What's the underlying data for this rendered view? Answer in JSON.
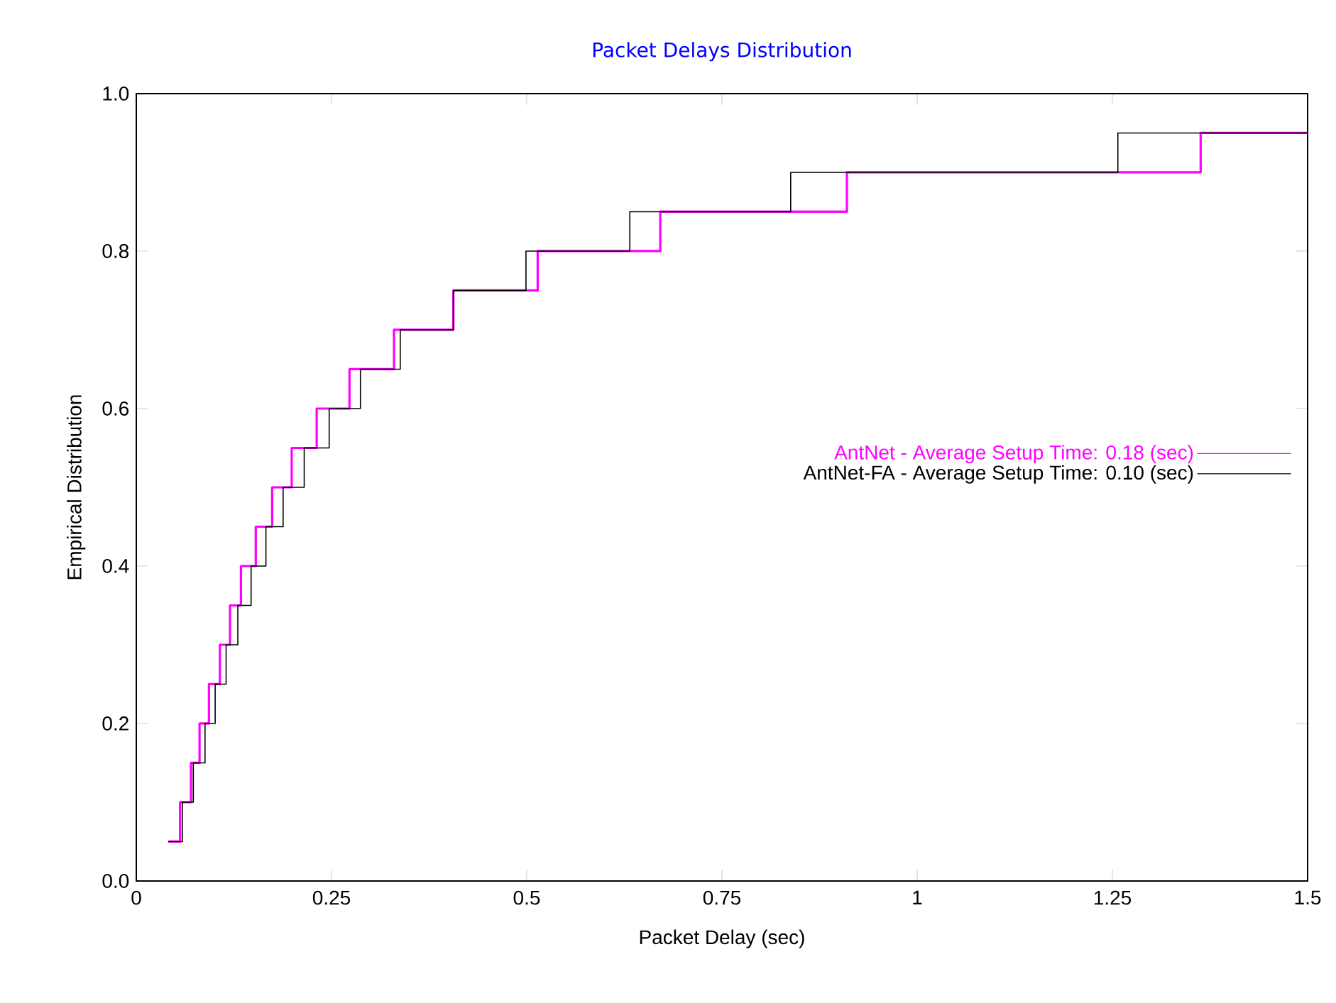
{
  "chart_data": {
    "type": "step",
    "title": "Packet Delays Distribution",
    "xlabel": "Packet Delay (sec)",
    "ylabel": "Empirical Distribution",
    "xlim": [
      0,
      1.5
    ],
    "ylim": [
      0,
      1.0
    ],
    "xticks": [
      0,
      0.25,
      0.5,
      0.75,
      1,
      1.25,
      1.5
    ],
    "yticks": [
      {
        "value": 0,
        "label": "0.0"
      },
      {
        "value": 0.2,
        "label": "0.2"
      },
      {
        "value": 0.4,
        "label": "0.4"
      },
      {
        "value": 0.6,
        "label": "0.6"
      },
      {
        "value": 0.8,
        "label": "0.8"
      },
      {
        "value": 1.0,
        "label": "1.0"
      }
    ],
    "grid": false,
    "legend": "right",
    "marker": "none",
    "line_style": "solid",
    "series": [
      {
        "name": "AntNet - Average Setup Time: 0.18 (sec)",
        "color": "#ff00ff",
        "x": [
          0.041,
          0.056,
          0.07,
          0.081,
          0.093,
          0.107,
          0.12,
          0.134,
          0.153,
          0.174,
          0.199,
          0.231,
          0.273,
          0.33,
          0.406,
          0.514,
          0.671,
          0.91,
          1.363,
          1.5
        ],
        "values": [
          0.05,
          0.1,
          0.15,
          0.2,
          0.25,
          0.3,
          0.35,
          0.4,
          0.45,
          0.5,
          0.55,
          0.6,
          0.65,
          0.7,
          0.75,
          0.8,
          0.85,
          0.9,
          0.95,
          0.95
        ]
      },
      {
        "name": "AntNet-FA - Average Setup Time: 0.10 (sec)",
        "color": "#000000",
        "x": [
          0.041,
          0.059,
          0.073,
          0.088,
          0.101,
          0.115,
          0.13,
          0.147,
          0.166,
          0.188,
          0.215,
          0.247,
          0.287,
          0.338,
          0.406,
          0.499,
          0.632,
          0.838,
          1.257,
          1.5
        ],
        "values": [
          0.05,
          0.1,
          0.15,
          0.2,
          0.25,
          0.3,
          0.35,
          0.4,
          0.45,
          0.5,
          0.55,
          0.6,
          0.65,
          0.7,
          0.75,
          0.8,
          0.85,
          0.9,
          0.95,
          0.95
        ]
      }
    ]
  }
}
